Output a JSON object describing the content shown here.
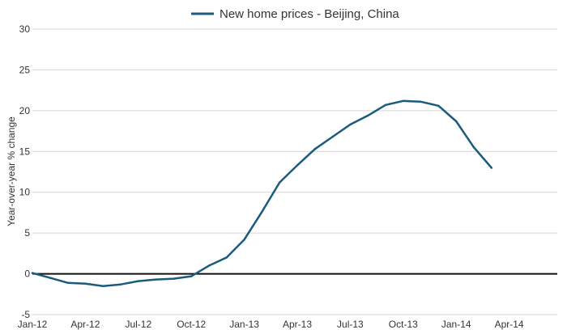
{
  "chart_data": {
    "type": "line",
    "legend_position": "top-center",
    "ylabel": "Year-over-year % change",
    "xlabel": "",
    "ylim": [
      -5,
      30
    ],
    "y_ticks": [
      -5,
      0,
      5,
      10,
      15,
      20,
      25,
      30
    ],
    "grid": true,
    "zero_line": true,
    "x_tick_labels": [
      "Jan-12",
      "Apr-12",
      "Jul-12",
      "Oct-12",
      "Jan-13",
      "Apr-13",
      "Jul-13",
      "Oct-13",
      "Jan-14",
      "Apr-14"
    ],
    "x": [
      "Jan-12",
      "Feb-12",
      "Mar-12",
      "Apr-12",
      "May-12",
      "Jun-12",
      "Jul-12",
      "Aug-12",
      "Sep-12",
      "Oct-12",
      "Nov-12",
      "Dec-12",
      "Jan-13",
      "Feb-13",
      "Mar-13",
      "Apr-13",
      "May-13",
      "Jun-13",
      "Jul-13",
      "Aug-13",
      "Sep-13",
      "Oct-13",
      "Nov-13",
      "Dec-13",
      "Jan-14",
      "Feb-14",
      "Mar-14"
    ],
    "series": [
      {
        "name": "New home prices - Beijing, China",
        "color": "#1b5b7e",
        "values": [
          0.1,
          -0.5,
          -1.1,
          -1.2,
          -1.5,
          -1.3,
          -0.9,
          -0.7,
          -0.6,
          -0.3,
          1.0,
          2.0,
          4.2,
          7.6,
          11.2,
          13.3,
          15.3,
          16.8,
          18.3,
          19.4,
          20.7,
          21.2,
          21.1,
          20.6,
          18.7,
          15.5,
          13.0
        ]
      }
    ]
  }
}
